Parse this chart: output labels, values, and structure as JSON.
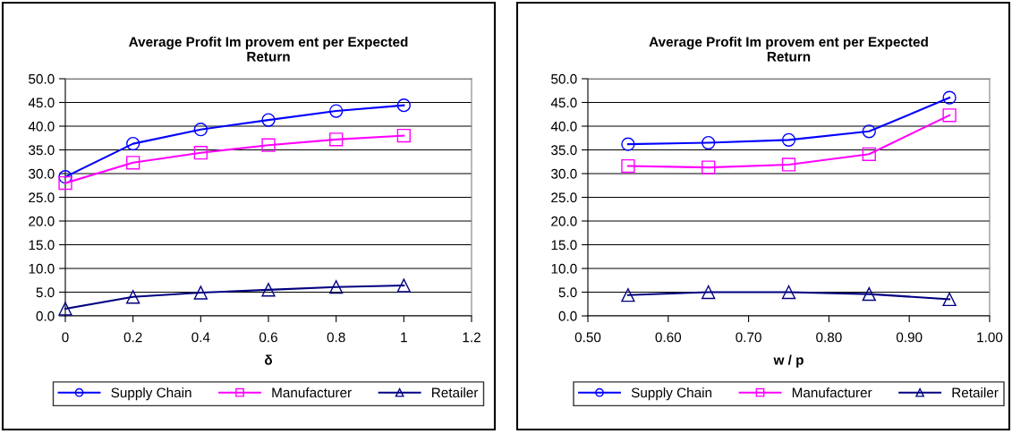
{
  "chart_data": [
    {
      "type": "line",
      "title": "Average Profit Im provem ent per Expected\nReturn",
      "xlabel": "δ",
      "x": [
        0,
        0.2,
        0.4,
        0.6,
        0.8,
        1
      ],
      "series": [
        {
          "name": "Supply Chain",
          "color": "#0000ff",
          "marker": "circle",
          "values": [
            29.3,
            36.3,
            39.3,
            41.3,
            43.2,
            44.4
          ]
        },
        {
          "name": "Manufacturer",
          "color": "#ff00ff",
          "marker": "square",
          "values": [
            28.0,
            32.3,
            34.4,
            36.0,
            37.2,
            38.0
          ]
        },
        {
          "name": "Retailer",
          "color": "#000080",
          "marker": "triangle",
          "values": [
            1.5,
            4.0,
            4.9,
            5.5,
            6.1,
            6.4
          ]
        }
      ],
      "xlim": [
        0,
        1.2
      ],
      "xticks": [
        0,
        0.2,
        0.4,
        0.6,
        0.8,
        1,
        1.2
      ],
      "ylim": [
        0,
        50
      ],
      "yticks": [
        {
          "value": 0,
          "label": "0.0"
        },
        {
          "value": 5,
          "label": "5.0"
        },
        {
          "value": 10,
          "label": "10.0"
        },
        {
          "value": 15,
          "label": "15.0"
        },
        {
          "value": 20,
          "label": "20.0"
        },
        {
          "value": 25,
          "label": "25.0"
        },
        {
          "value": 30,
          "label": "30.0"
        },
        {
          "value": 35,
          "label": "35.0"
        },
        {
          "value": 40,
          "label": "40.0"
        },
        {
          "value": 45,
          "label": "45.0"
        },
        {
          "value": 50,
          "label": "50.0"
        }
      ],
      "grid": "y",
      "legend": "bottom",
      "line_style": "solid"
    },
    {
      "type": "line",
      "title": "Average Profit Im provem ent per Expected\nReturn",
      "xlabel": "w / p",
      "x": [
        0.55,
        0.65,
        0.75,
        0.85,
        0.95
      ],
      "series": [
        {
          "name": "Supply Chain",
          "color": "#0000ff",
          "marker": "circle",
          "values": [
            36.2,
            36.5,
            37.1,
            38.9,
            46.0
          ]
        },
        {
          "name": "Manufacturer",
          "color": "#ff00ff",
          "marker": "square",
          "values": [
            31.6,
            31.3,
            31.9,
            34.1,
            42.3
          ]
        },
        {
          "name": "Retailer",
          "color": "#000080",
          "marker": "triangle",
          "values": [
            4.4,
            5.0,
            5.0,
            4.6,
            3.5
          ]
        }
      ],
      "xlim": [
        0.5,
        1.0
      ],
      "xticks": [
        {
          "value": 0.5,
          "label": "0.50"
        },
        {
          "value": 0.6,
          "label": "0.60"
        },
        {
          "value": 0.7,
          "label": "0.70"
        },
        {
          "value": 0.8,
          "label": "0.80"
        },
        {
          "value": 0.9,
          "label": "0.90"
        },
        {
          "value": 1.0,
          "label": "1.00"
        }
      ],
      "ylim": [
        0,
        50
      ],
      "yticks": [
        {
          "value": 0,
          "label": "0.0"
        },
        {
          "value": 5,
          "label": "5.0"
        },
        {
          "value": 10,
          "label": "10.0"
        },
        {
          "value": 15,
          "label": "15.0"
        },
        {
          "value": 20,
          "label": "20.0"
        },
        {
          "value": 25,
          "label": "25.0"
        },
        {
          "value": 30,
          "label": "30.0"
        },
        {
          "value": 35,
          "label": "35.0"
        },
        {
          "value": 40,
          "label": "40.0"
        },
        {
          "value": 45,
          "label": "45.0"
        },
        {
          "value": 50,
          "label": "50.0"
        }
      ],
      "grid": "y",
      "legend": "bottom",
      "line_style": "solid"
    }
  ]
}
